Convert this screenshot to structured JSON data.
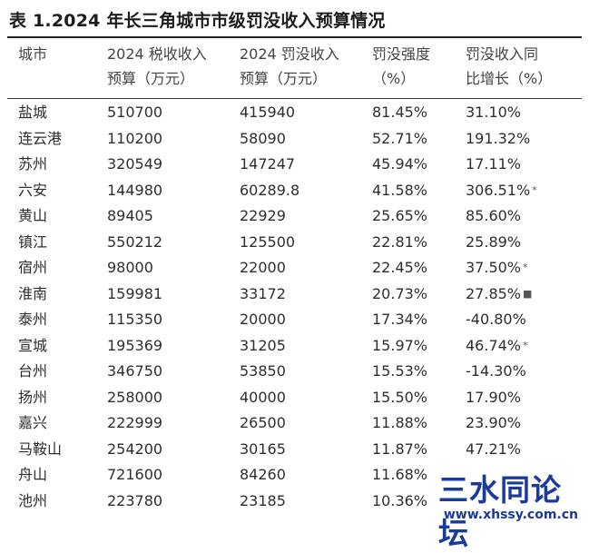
{
  "title": "表 1.2024 年长三角城市市级罚没收入预算情况",
  "headers": [
    "城市",
    "2024 税收收入\n预算（万元）",
    "2024 罚没收入\n预算（万元）",
    "罚没强度\n（%）",
    "罚没收入同\n比增长（%）"
  ],
  "rows": [
    [
      "盐城",
      "510700",
      "415940",
      "81.45%",
      "31.10%",
      ""
    ],
    [
      "连云港",
      "110200",
      "58090",
      "52.71%",
      "191.32%",
      ""
    ],
    [
      "苏州",
      "320549",
      "147247",
      "45.94%",
      "17.11%",
      ""
    ],
    [
      "六安",
      "144980",
      "60289.8",
      "41.58%",
      "306.51%",
      "*"
    ],
    [
      "黄山",
      "89405",
      "22929",
      "25.65%",
      "85.60%",
      ""
    ],
    [
      "镇江",
      "550212",
      "125500",
      "22.81%",
      "25.89%",
      ""
    ],
    [
      "宿州",
      "98000",
      "22000",
      "22.45%",
      "37.50%",
      "*"
    ],
    [
      "淮南",
      "159981",
      "33172",
      "20.73%",
      "27.85%",
      "■"
    ],
    [
      "泰州",
      "115350",
      "20000",
      "17.34%",
      "-40.80%",
      ""
    ],
    [
      "宣城",
      "195369",
      "31205",
      "15.97%",
      "46.74%",
      "*"
    ],
    [
      "台州",
      "346750",
      "53850",
      "15.53%",
      "-14.30%",
      ""
    ],
    [
      "扬州",
      "258000",
      "40000",
      "15.50%",
      "17.90%",
      ""
    ],
    [
      "嘉兴",
      "222999",
      "26500",
      "11.88%",
      "23.90%",
      ""
    ],
    [
      "马鞍山",
      "254200",
      "30165",
      "11.87%",
      "47.21%",
      ""
    ],
    [
      "舟山",
      "721600",
      "84260",
      "11.68%",
      "",
      ""
    ],
    [
      "池州",
      "223780",
      "23185",
      "10.36%",
      "",
      ""
    ]
  ],
  "watermark": {
    "name": "三水同论坛",
    "url": "www.xhssy.com.cn"
  },
  "colors": {
    "rule": "#222222",
    "watermark": "#1a3a9c"
  }
}
